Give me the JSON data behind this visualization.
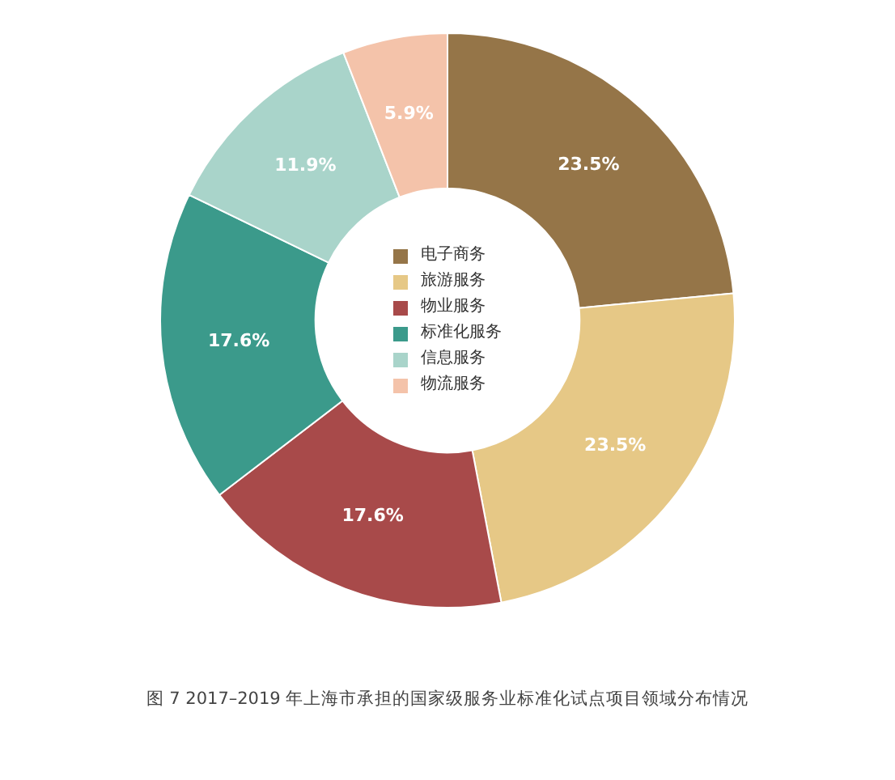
{
  "chart_data": {
    "type": "donut",
    "categories": [
      "电子商务",
      "旅游服务",
      "物业服务",
      "标准化服务",
      "信息服务",
      "物流服务"
    ],
    "values": [
      23.5,
      23.5,
      17.6,
      17.6,
      11.9,
      5.9
    ],
    "value_labels": [
      "23.5%",
      "23.5%",
      "17.6%",
      "17.6%",
      "11.9%",
      "5.9%"
    ],
    "colors": [
      "#957548",
      "#e6c886",
      "#a84a4a",
      "#3b9a8b",
      "#a9d4ca",
      "#f4c3aa"
    ],
    "legend": "center",
    "annotations": [
      "图 7   2017–2019 年上海市承担的国家级服务业标准化试点项目领域分布情况"
    ]
  }
}
